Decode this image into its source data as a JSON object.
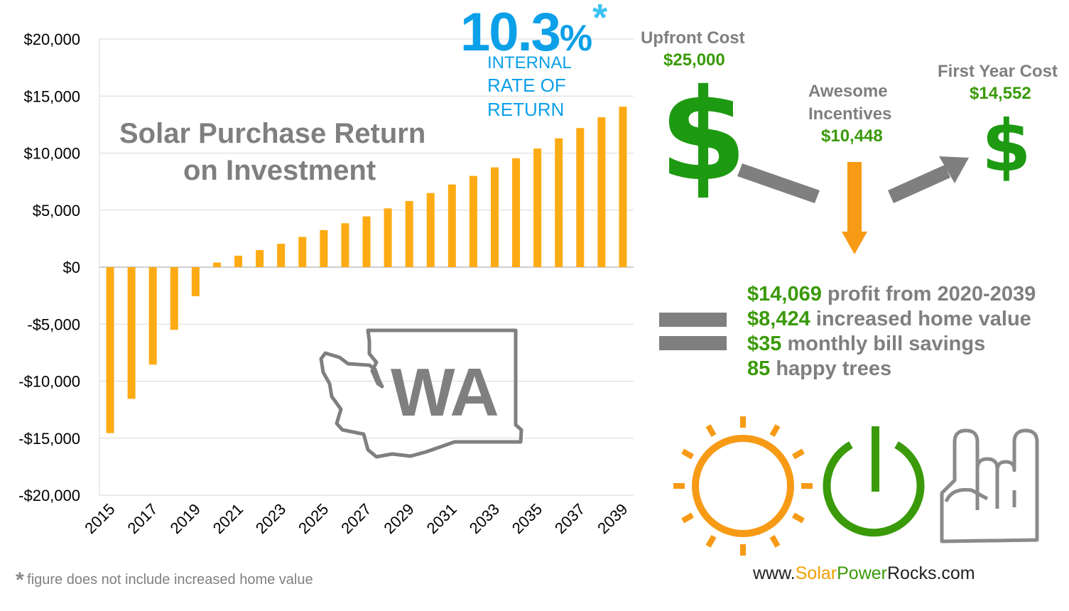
{
  "chart_data": {
    "type": "bar",
    "title": "Solar Purchase Return on Investment",
    "title_lines": [
      "Solar Purchase Return",
      "on Investment"
    ],
    "x": [
      2015,
      2016,
      2017,
      2018,
      2019,
      2020,
      2021,
      2022,
      2023,
      2024,
      2025,
      2026,
      2027,
      2028,
      2029,
      2030,
      2031,
      2032,
      2033,
      2034,
      2035,
      2036,
      2037,
      2038,
      2039
    ],
    "x_tick_labels": [
      "2015",
      "2017",
      "2019",
      "2021",
      "2023",
      "2025",
      "2027",
      "2029",
      "2031",
      "2033",
      "2035",
      "2037",
      "2039"
    ],
    "values": [
      -14552,
      -11550,
      -8550,
      -5500,
      -2550,
      400,
      1000,
      1500,
      2050,
      2650,
      3250,
      3850,
      4450,
      5150,
      5800,
      6500,
      7250,
      8000,
      8750,
      9550,
      10400,
      11300,
      12200,
      13150,
      14069
    ],
    "ylim": [
      -20000,
      20000
    ],
    "y_ticks": [
      20000,
      15000,
      10000,
      5000,
      0,
      -5000,
      -10000,
      -15000,
      -20000
    ],
    "y_tick_labels": [
      "$20,000",
      "$15,000",
      "$10,000",
      "$5,000",
      "$0",
      "-$5,000",
      "-$10,000",
      "-$15,000",
      "-$20,000"
    ],
    "xlabel": "",
    "ylabel": "",
    "grid": true,
    "bar_color": "#fdab14"
  },
  "state_label": "WA",
  "irr": {
    "value": "10.3",
    "percent": "%",
    "asterisk": "*",
    "lines": [
      "INTERNAL",
      "RATE OF",
      "RETURN"
    ]
  },
  "upfront": {
    "label": "Upfront Cost",
    "value": "$25,000",
    "symbol": "$"
  },
  "incentives": {
    "label_lines": [
      "Awesome",
      "Incentives"
    ],
    "value": "$10,448"
  },
  "first_year": {
    "label": "First Year Cost",
    "value": "$14,552",
    "symbol": "$"
  },
  "benefits": [
    {
      "value": "$14,069",
      "text": " profit from 2020-2039"
    },
    {
      "value": "$8,424",
      "text": " increased home value"
    },
    {
      "value": "$35",
      "text": " monthly bill savings"
    },
    {
      "value": "85",
      "text": " happy trees"
    }
  ],
  "footnote": {
    "asterisk": "*",
    "text": "figure does not include increased home value"
  },
  "website": {
    "prefix": "www.",
    "part1": "Solar",
    "part2": "Power",
    "part3": "Rocks",
    "suffix": ".com"
  },
  "colors": {
    "accent_blue": "#0ca0e8",
    "green": "#3a9a0a",
    "orange": "#fdab14",
    "grey": "#7f7f7f"
  },
  "icons": [
    "sun-icon",
    "power-icon",
    "rock-hand-icon",
    "washington-state-outline-icon"
  ]
}
